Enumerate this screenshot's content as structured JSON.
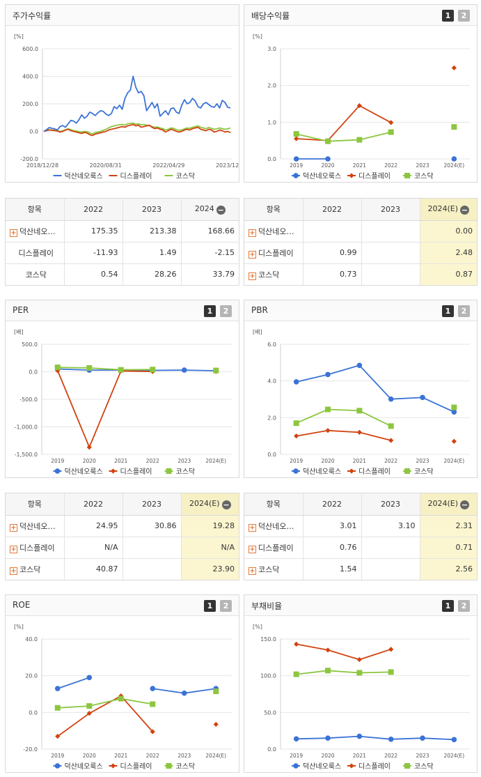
{
  "colors": {
    "series1": "#3a73d6",
    "series2": "#d2420f",
    "series3": "#8cc63f"
  },
  "series_names": [
    "덕산네오룩스",
    "디스플레이",
    "코스닥"
  ],
  "panels": {
    "stock": {
      "title": "주가수익률"
    },
    "dividend": {
      "title": "배당수익률"
    },
    "per": {
      "title": "PER"
    },
    "pbr": {
      "title": "PBR"
    },
    "roe": {
      "title": "ROE"
    },
    "debt": {
      "title": "부채비율"
    }
  },
  "pager": [
    "1",
    "2"
  ],
  "chart_data": [
    {
      "id": "stock",
      "type": "line",
      "title": "주가수익률",
      "unit": "[%]",
      "ylim": [
        -200,
        600
      ],
      "yticks": [
        "600.0",
        "400.0",
        "200.0",
        "0.0",
        "-200.0"
      ],
      "ytick_values": [
        600,
        400,
        200,
        0,
        -200
      ],
      "xticks": [
        "2018/12/28",
        "2020/08/31",
        "2022/04/29",
        "2023/12/28"
      ],
      "series": [
        {
          "name": "덕산네오룩스",
          "values": [
            0,
            12,
            28,
            22,
            18,
            10,
            35,
            42,
            30,
            55,
            80,
            75,
            60,
            85,
            120,
            95,
            110,
            140,
            130,
            115,
            135,
            150,
            145,
            125,
            115,
            130,
            180,
            165,
            190,
            160,
            240,
            280,
            300,
            400,
            320,
            280,
            290,
            260,
            150,
            180,
            210,
            170,
            200,
            110,
            130,
            150,
            120,
            165,
            170,
            140,
            130,
            190,
            230,
            200,
            210,
            240,
            220,
            180,
            170,
            200,
            210,
            195,
            180,
            175,
            200,
            170,
            225,
            210,
            175,
            170
          ]
        },
        {
          "name": "디스플레이",
          "values": [
            0,
            5,
            10,
            8,
            6,
            2,
            -5,
            0,
            10,
            15,
            5,
            0,
            -5,
            -10,
            -15,
            -8,
            -12,
            -25,
            -30,
            -20,
            -15,
            -10,
            -5,
            0,
            10,
            15,
            20,
            25,
            30,
            35,
            30,
            40,
            45,
            50,
            40,
            45,
            30,
            35,
            40,
            45,
            30,
            20,
            25,
            15,
            10,
            -5,
            5,
            15,
            10,
            0,
            -5,
            0,
            10,
            15,
            10,
            20,
            25,
            30,
            15,
            10,
            5,
            15,
            10,
            -5,
            0,
            10,
            5,
            -5,
            0,
            -10
          ]
        },
        {
          "name": "코스닥",
          "values": [
            0,
            8,
            12,
            10,
            7,
            5,
            0,
            4,
            12,
            18,
            12,
            5,
            2,
            -2,
            -5,
            0,
            -3,
            -12,
            -18,
            -10,
            -5,
            0,
            8,
            15,
            25,
            35,
            40,
            45,
            48,
            50,
            45,
            55,
            58,
            60,
            52,
            55,
            48,
            50,
            45,
            42,
            35,
            30,
            32,
            25,
            20,
            10,
            15,
            25,
            22,
            12,
            8,
            10,
            18,
            25,
            22,
            30,
            35,
            40,
            30,
            25,
            20,
            28,
            22,
            15,
            18,
            25,
            20,
            15,
            18,
            25
          ]
        }
      ],
      "legend": "bottom"
    },
    {
      "id": "dividend",
      "type": "line",
      "title": "배당수익률",
      "unit": "[%]",
      "ylim": [
        0,
        3
      ],
      "yticks": [
        "3.0",
        "2.0",
        "1.0",
        "0.0"
      ],
      "ytick_values": [
        3,
        2,
        1,
        0
      ],
      "categories": [
        "2019",
        "2020",
        "2021",
        "2022",
        "2023",
        "2024(E)"
      ],
      "series": [
        {
          "name": "덕산네오룩스",
          "values": [
            0.0,
            0.0,
            null,
            null,
            null,
            0.0
          ]
        },
        {
          "name": "디스플레이",
          "values": [
            0.55,
            0.5,
            1.45,
            0.99,
            null,
            2.48
          ]
        },
        {
          "name": "코스닥",
          "values": [
            0.68,
            0.48,
            0.52,
            0.73,
            null,
            0.87
          ]
        }
      ],
      "legend": "bottom"
    },
    {
      "id": "per",
      "type": "line",
      "title": "PER",
      "unit": "[배]",
      "ylim": [
        -1500,
        500
      ],
      "yticks": [
        "500.0",
        "0.0",
        "-500.0",
        "-1,000.0",
        "-1,500.0"
      ],
      "ytick_values": [
        500,
        0,
        -500,
        -1000,
        -1500
      ],
      "categories": [
        "2019",
        "2020",
        "2021",
        "2022",
        "2023",
        "2024(E)"
      ],
      "series": [
        {
          "name": "덕산네오룩스",
          "values": [
            50,
            30,
            30,
            24.95,
            30.86,
            19.28
          ]
        },
        {
          "name": "디스플레이",
          "values": [
            20,
            -1370,
            15,
            5,
            null,
            5
          ]
        },
        {
          "name": "코스닥",
          "values": [
            80,
            70,
            35,
            40.87,
            null,
            23.9
          ]
        }
      ],
      "legend": "bottom"
    },
    {
      "id": "pbr",
      "type": "line",
      "title": "PBR",
      "unit": "[배]",
      "ylim": [
        0,
        6
      ],
      "yticks": [
        "6.0",
        "4.0",
        "2.0",
        "0.0"
      ],
      "ytick_values": [
        6,
        4,
        2,
        0
      ],
      "categories": [
        "2019",
        "2020",
        "2021",
        "2022",
        "2023",
        "2024(E)"
      ],
      "series": [
        {
          "name": "덕산네오룩스",
          "values": [
            3.95,
            4.35,
            4.85,
            3.01,
            3.1,
            2.31
          ]
        },
        {
          "name": "디스플레이",
          "values": [
            1.0,
            1.3,
            1.2,
            0.76,
            null,
            0.71
          ]
        },
        {
          "name": "코스닥",
          "values": [
            1.7,
            2.45,
            2.38,
            1.54,
            null,
            2.56
          ]
        }
      ],
      "legend": "bottom"
    },
    {
      "id": "roe",
      "type": "line",
      "title": "ROE",
      "unit": "[%]",
      "ylim": [
        -20,
        40
      ],
      "yticks": [
        "40.0",
        "20.0",
        "0.0",
        "-20.0"
      ],
      "ytick_values": [
        40,
        20,
        0,
        -20
      ],
      "categories": [
        "2019",
        "2020",
        "2021",
        "2022",
        "2023",
        "2024(E)"
      ],
      "series": [
        {
          "name": "덕산네오룩스",
          "values": [
            13,
            19,
            null,
            13,
            10.5,
            13
          ]
        },
        {
          "name": "디스플레이",
          "values": [
            -13,
            -0.5,
            9,
            -10.5,
            null,
            -6.5
          ]
        },
        {
          "name": "코스닥",
          "values": [
            2.5,
            3.5,
            7.5,
            4.5,
            null,
            11.5
          ]
        }
      ],
      "legend": "bottom"
    },
    {
      "id": "debt",
      "type": "line",
      "title": "부채비율",
      "unit": "[%]",
      "ylim": [
        0,
        150
      ],
      "yticks": [
        "150.0",
        "100.0",
        "50.0",
        "0.0"
      ],
      "ytick_values": [
        150,
        100,
        50,
        0
      ],
      "categories": [
        "2019",
        "2020",
        "2021",
        "2022",
        "2023",
        "2024(E)"
      ],
      "series": [
        {
          "name": "덕산네오룩스",
          "values": [
            14,
            15,
            17.5,
            13.5,
            15,
            13
          ]
        },
        {
          "name": "디스플레이",
          "values": [
            143,
            135,
            122,
            136,
            null,
            null
          ]
        },
        {
          "name": "코스닥",
          "values": [
            102,
            107,
            104,
            105,
            null,
            null
          ]
        }
      ],
      "legend": "bottom"
    }
  ],
  "tables": {
    "stock": {
      "headers": [
        "항목",
        "2022",
        "2023",
        "2024"
      ],
      "rows": [
        {
          "name": "덕산네오…",
          "values": [
            "175.35",
            "213.38",
            "168.66"
          ]
        },
        {
          "name": "디스플레이",
          "values": [
            "-11.93",
            "1.49",
            "-2.15"
          ]
        },
        {
          "name": "코스닥",
          "values": [
            "0.54",
            "28.26",
            "33.79"
          ]
        }
      ]
    },
    "dividend": {
      "headers": [
        "항목",
        "2022",
        "2023",
        "2024(E)"
      ],
      "rows": [
        {
          "name": "덕산네오…",
          "values": [
            "",
            "",
            "0.00"
          ]
        },
        {
          "name": "디스플레이",
          "values": [
            "0.99",
            "",
            "2.48"
          ]
        },
        {
          "name": "코스닥",
          "values": [
            "0.73",
            "",
            "0.87"
          ]
        }
      ]
    },
    "per": {
      "headers": [
        "항목",
        "2022",
        "2023",
        "2024(E)"
      ],
      "rows": [
        {
          "name": "덕산네오…",
          "values": [
            "24.95",
            "30.86",
            "19.28"
          ]
        },
        {
          "name": "디스플레이",
          "values": [
            "N/A",
            "",
            "N/A"
          ]
        },
        {
          "name": "코스닥",
          "values": [
            "40.87",
            "",
            "23.90"
          ]
        }
      ]
    },
    "pbr": {
      "headers": [
        "항목",
        "2022",
        "2023",
        "2024(E)"
      ],
      "rows": [
        {
          "name": "덕산네오…",
          "values": [
            "3.01",
            "3.10",
            "2.31"
          ]
        },
        {
          "name": "디스플레이",
          "values": [
            "0.76",
            "",
            "0.71"
          ]
        },
        {
          "name": "코스닥",
          "values": [
            "1.54",
            "",
            "2.56"
          ]
        }
      ]
    }
  }
}
